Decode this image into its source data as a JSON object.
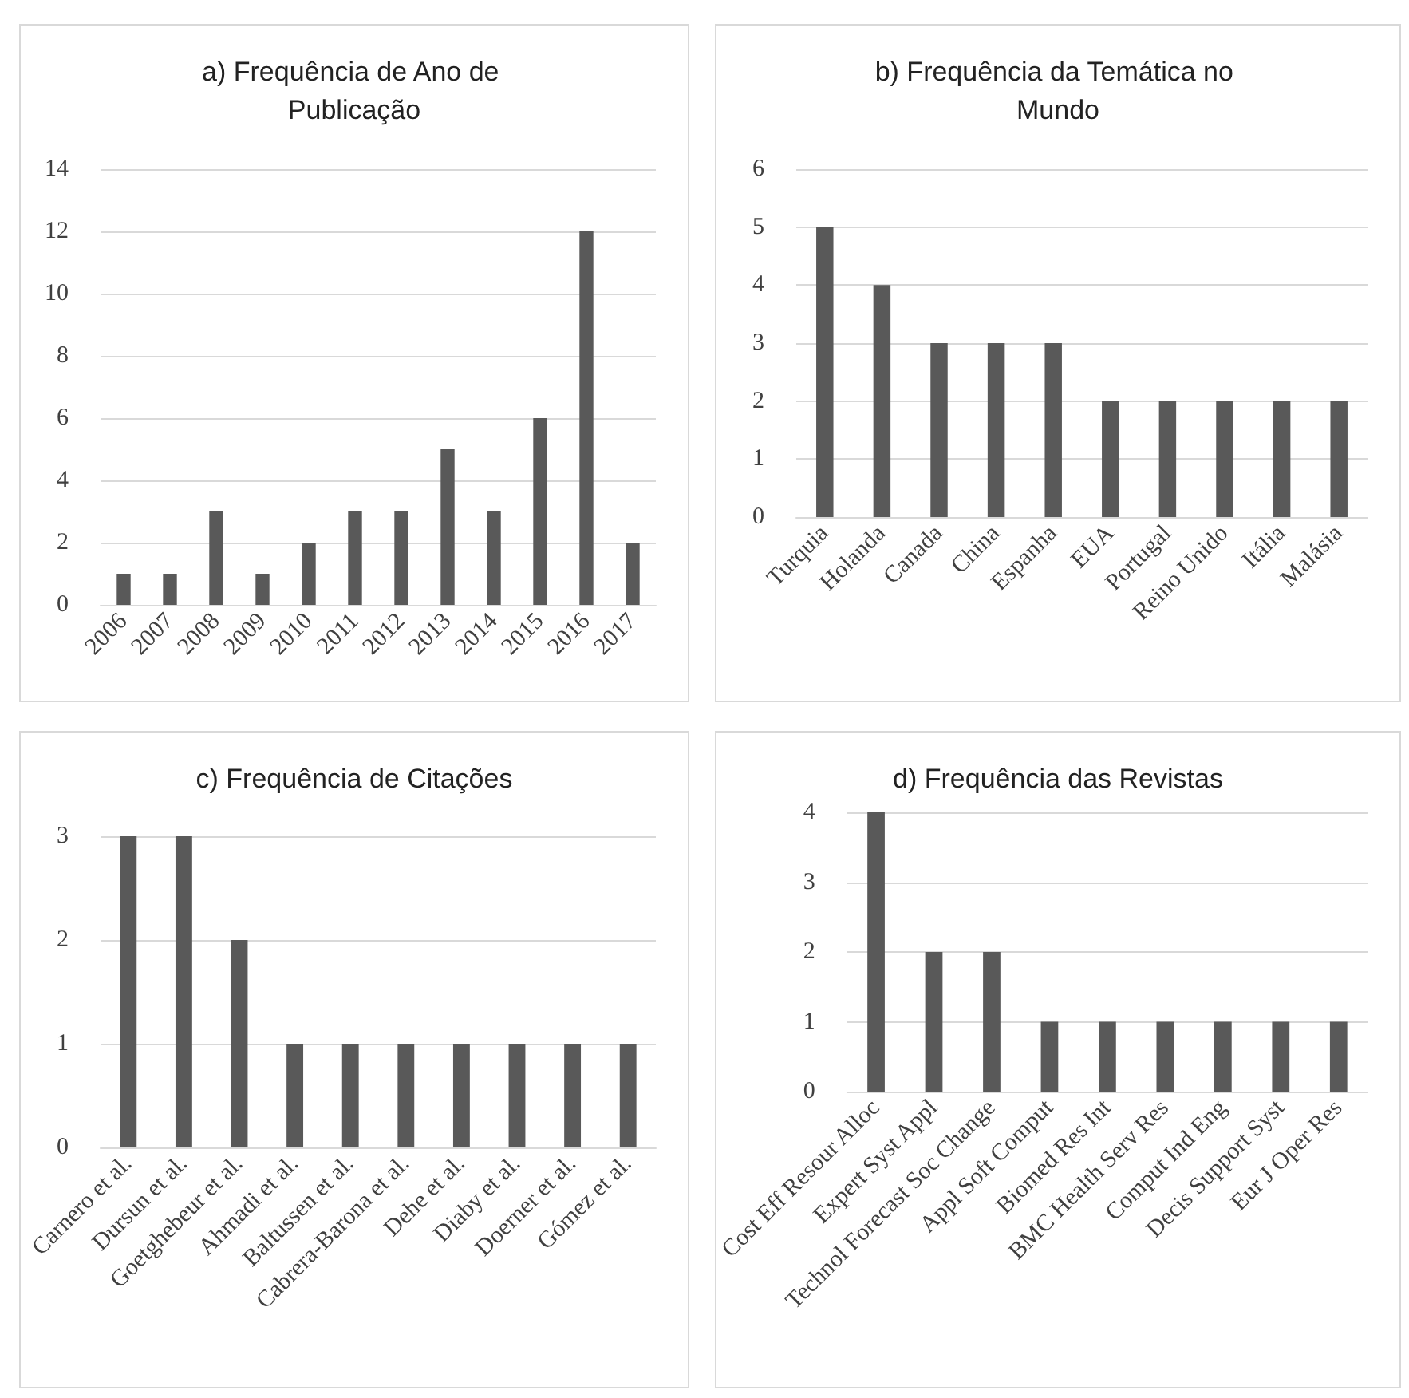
{
  "chart_data": [
    {
      "type": "bar",
      "title": "a) Frequência de Ano de Publicação",
      "categories": [
        "2006",
        "2007",
        "2008",
        "2009",
        "2010",
        "2011",
        "2012",
        "2013",
        "2014",
        "2015",
        "2016",
        "2017"
      ],
      "values": [
        1,
        1,
        3,
        1,
        2,
        3,
        3,
        5,
        3,
        6,
        12,
        2
      ],
      "color": "#595959",
      "ylim": [
        0,
        14
      ],
      "yticks": [
        0,
        2,
        4,
        6,
        8,
        10,
        12,
        14
      ],
      "grid": "y"
    },
    {
      "type": "bar",
      "title": "b) Frequência da Temática no Mundo",
      "categories": [
        "Turquia",
        "Holanda",
        "Canada",
        "China",
        "Espanha",
        "EUA",
        "Portugal",
        "Reino Unido",
        "Itália",
        "Malásia"
      ],
      "values": [
        5,
        4,
        3,
        3,
        3,
        2,
        2,
        2,
        2,
        2
      ],
      "color": "#595959",
      "ylim": [
        0,
        6
      ],
      "yticks": [
        0,
        1,
        2,
        3,
        4,
        5,
        6
      ],
      "grid": "y"
    },
    {
      "type": "bar",
      "title": "c) Frequência de Citações",
      "categories": [
        "Carnero et al.",
        "Dursun et al.",
        "Goetghebeur et al.",
        "Ahmadi et al.",
        "Baltussen et al.",
        "Cabrera-Barona et al.",
        "Dehe et al.",
        "Diaby et al.",
        "Doerner et al.",
        "Gómez et al."
      ],
      "values": [
        3,
        3,
        2,
        1,
        1,
        1,
        1,
        1,
        1,
        1
      ],
      "color": "#595959",
      "ylim": [
        0,
        3
      ],
      "yticks": [
        0,
        1,
        2,
        3
      ],
      "grid": "y"
    },
    {
      "type": "bar",
      "title": "d) Frequência das Revistas",
      "categories": [
        "Cost Eff Resour Alloc",
        "Expert Syst Appl",
        "Technol Forecast Soc Change",
        "Appl Soft Comput",
        "Biomed Res Int",
        "BMC Health Serv Res",
        "Comput Ind Eng",
        "Decis Support Syst",
        "Eur J Oper Res"
      ],
      "values": [
        4,
        2,
        2,
        1,
        1,
        1,
        1,
        1,
        1
      ],
      "color": "#595959",
      "ylim": [
        0,
        4
      ],
      "yticks": [
        0,
        1,
        2,
        3,
        4
      ],
      "grid": "y"
    }
  ]
}
